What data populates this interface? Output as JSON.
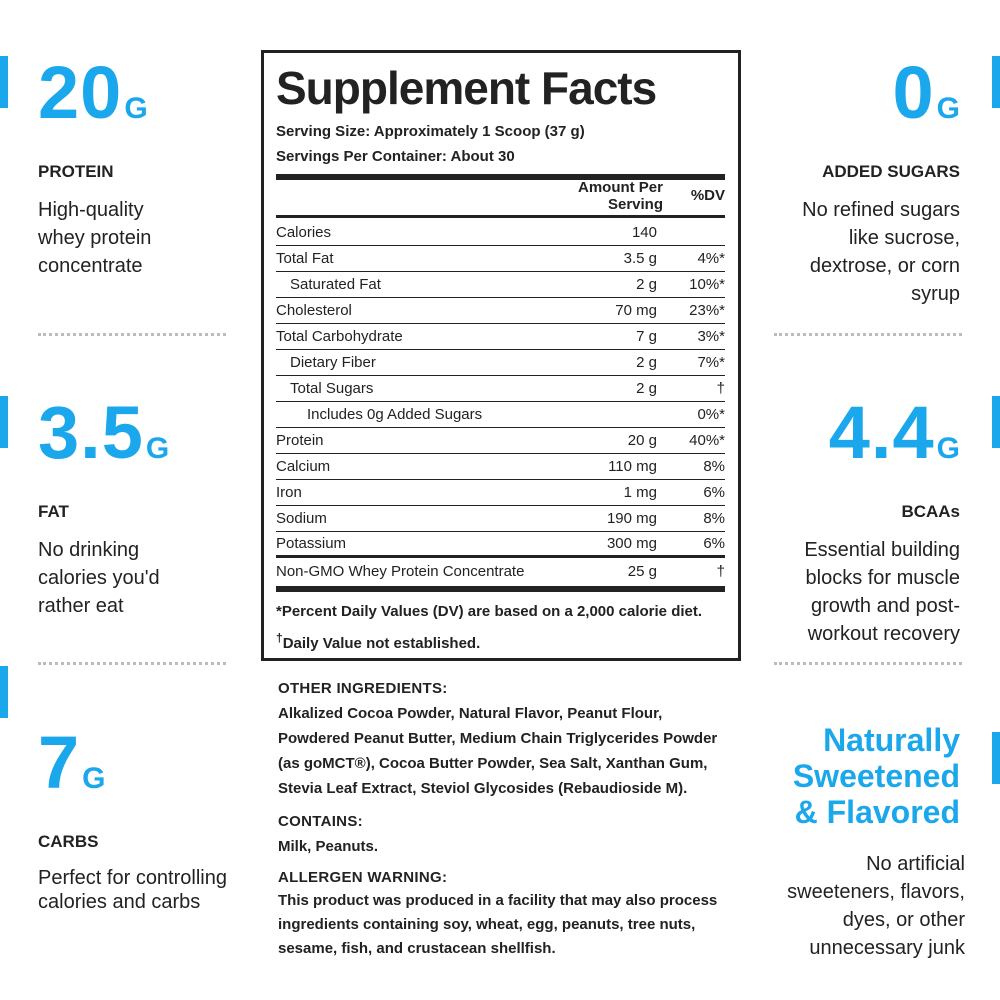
{
  "accent_color": "#1aa7ec",
  "left_stats": [
    {
      "value": "20",
      "unit": "G",
      "label": "PROTEIN",
      "desc": "High-quality whey protein concentrate"
    },
    {
      "value": "3.5",
      "unit": "G",
      "label": "FAT",
      "desc": "No drinking calories you'd rather eat"
    },
    {
      "value": "7",
      "unit": "G",
      "label": "CARBS",
      "desc": "Perfect for controlling calories and carbs"
    }
  ],
  "right_stats": [
    {
      "value": "0",
      "unit": "G",
      "label": "ADDED SUGARS",
      "desc": "No refined sugars like sucrose, dextrose, or corn syrup"
    },
    {
      "value": "4.4",
      "unit": "G",
      "label": "BCAAs",
      "desc": "Essential building blocks for muscle growth and post-workout recovery"
    },
    {
      "headline": "Naturally Sweetened & Flavored",
      "desc": "No artificial sweeteners, flavors, dyes, or other unnecessary junk"
    }
  ],
  "facts": {
    "title": "Supplement Facts",
    "serving_size": "Serving Size: Approximately 1 Scoop (37 g)",
    "servings_per_container": "Servings Per Container: About 30",
    "header_amount": "Amount Per Serving",
    "header_dv": "%DV",
    "rows": [
      {
        "name": "Calories",
        "amount": "140",
        "dv": ""
      },
      {
        "name": "Total Fat",
        "amount": "3.5 g",
        "dv": "4%*"
      },
      {
        "name": "Saturated Fat",
        "amount": "2 g",
        "dv": "10%*"
      },
      {
        "name": "Cholesterol",
        "amount": "70 mg",
        "dv": "23%*"
      },
      {
        "name": "Total Carbohydrate",
        "amount": "7 g",
        "dv": "3%*"
      },
      {
        "name": "Dietary Fiber",
        "amount": "2 g",
        "dv": "7%*"
      },
      {
        "name": "Total Sugars",
        "amount": "2 g",
        "dv": "†"
      },
      {
        "name": "Includes 0g Added Sugars",
        "amount": "",
        "dv": "0%*"
      },
      {
        "name": "Protein",
        "amount": "20 g",
        "dv": "40%*"
      },
      {
        "name": "Calcium",
        "amount": "110 mg",
        "dv": "8%"
      },
      {
        "name": "Iron",
        "amount": "1 mg",
        "dv": "6%"
      },
      {
        "name": "Sodium",
        "amount": "190 mg",
        "dv": "8%"
      },
      {
        "name": "Potassium",
        "amount": "300 mg",
        "dv": "6%"
      },
      {
        "name": "Non-GMO Whey Protein Concentrate",
        "amount": "25 g",
        "dv": "†"
      }
    ],
    "footnote_dv": "*Percent Daily Values (DV) are based on a 2,000 calorie diet.",
    "footnote_dagger_symbol": "†",
    "footnote_dagger": "Daily Value not established."
  },
  "ingredients": {
    "other_heading": "OTHER INGREDIENTS:",
    "other_text": "Alkalized Cocoa Powder, Natural Flavor, Peanut Flour, Powdered Peanut Butter, Medium Chain Triglycerides Powder (as goMCT®), Cocoa Butter Powder, Sea Salt, Xanthan Gum, Stevia Leaf Extract, Steviol Glycosides (Rebaudioside M).",
    "contains_heading": "CONTAINS:",
    "contains_text": "Milk, Peanuts.",
    "allergen_heading": "ALLERGEN WARNING:",
    "allergen_text": "This product was produced in a facility that may also process ingredients containing soy, wheat, egg, peanuts, tree nuts, sesame, fish, and crustacean shellfish."
  }
}
